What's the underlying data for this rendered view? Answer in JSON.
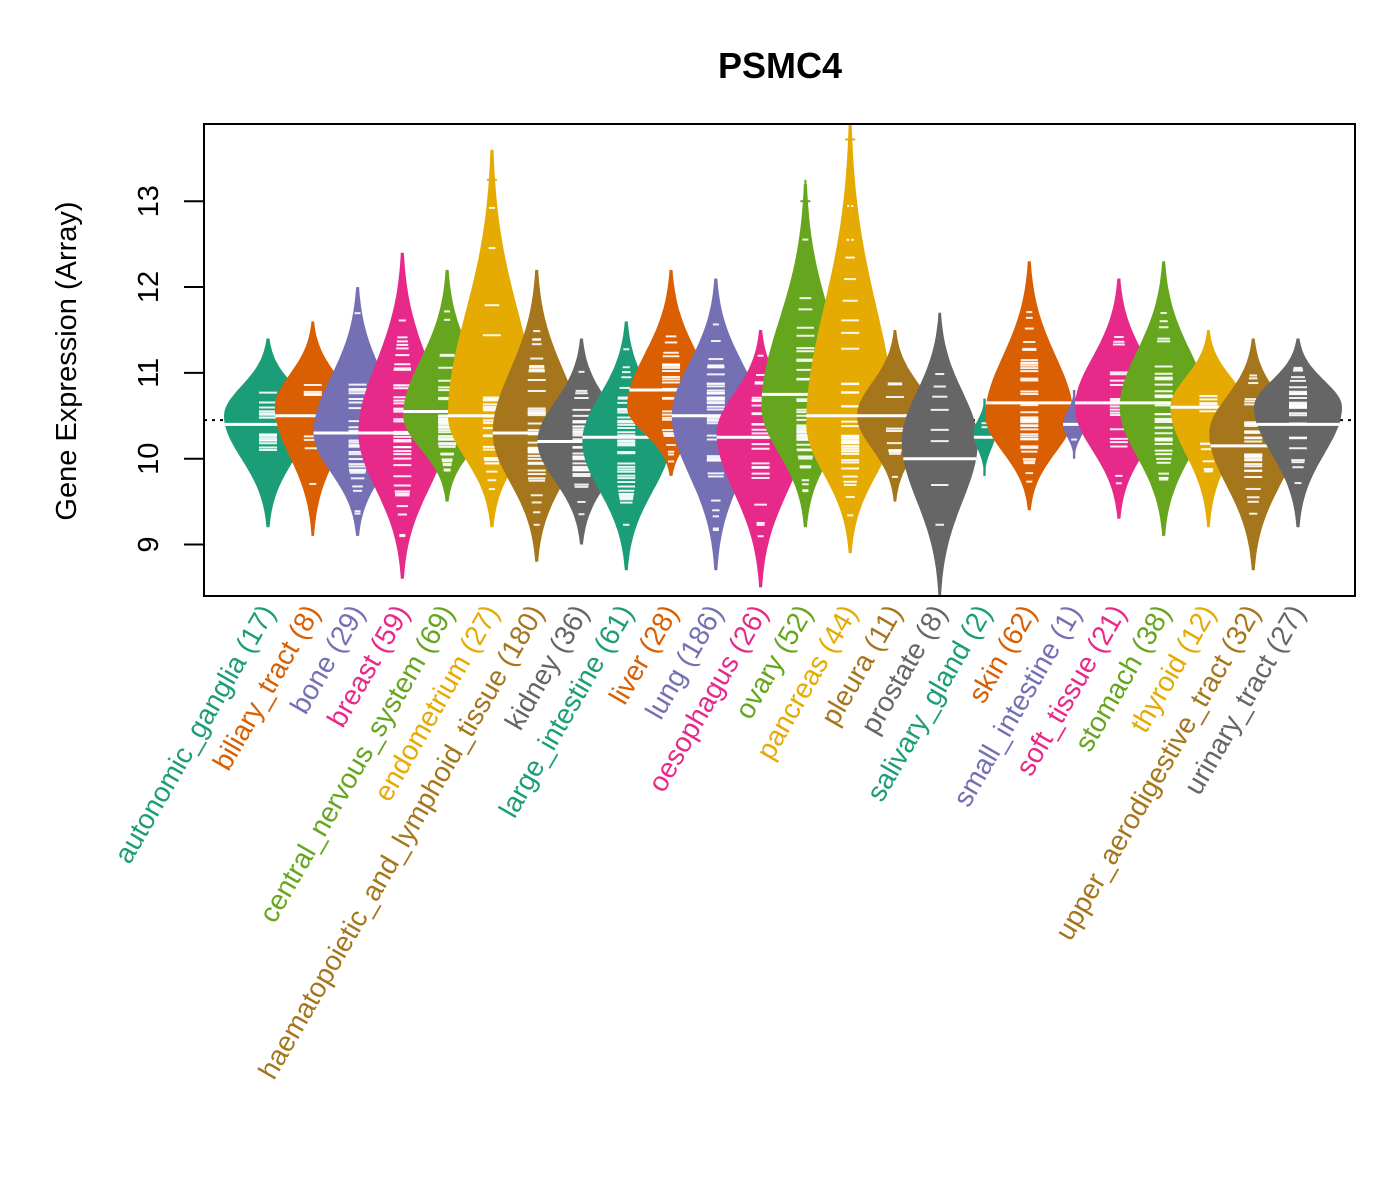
{
  "chart_data": {
    "type": "violin",
    "title": "PSMC4",
    "xlabel": "",
    "ylabel": "Gene Expression (Array)",
    "ylim": [
      8.4,
      13.9
    ],
    "yticks": [
      9,
      10,
      11,
      12,
      13
    ],
    "reference_line": 10.45,
    "grid": false,
    "legend": "none",
    "categories": [
      {
        "name": "autonomic_ganglia",
        "n": 17,
        "label": "autonomic_ganglia (17)",
        "color": "#1B9E77",
        "min": 9.2,
        "max": 11.4,
        "median": 10.4,
        "mode": 10.5
      },
      {
        "name": "biliary_tract",
        "n": 8,
        "label": "biliary_tract (8)",
        "color": "#D95F02",
        "min": 9.1,
        "max": 11.6,
        "median": 10.5,
        "mode": 10.6
      },
      {
        "name": "bone",
        "n": 29,
        "label": "bone (29)",
        "color": "#7570B3",
        "min": 9.1,
        "max": 12.0,
        "median": 10.3,
        "mode": 10.3
      },
      {
        "name": "breast",
        "n": 59,
        "label": "breast (59)",
        "color": "#E7298A",
        "min": 8.6,
        "max": 12.4,
        "median": 10.3,
        "mode": 10.3
      },
      {
        "name": "central_nervous_system",
        "n": 69,
        "label": "central_nervous_system (69)",
        "color": "#66A61E",
        "min": 9.5,
        "max": 12.2,
        "median": 10.55,
        "mode": 10.5
      },
      {
        "name": "endometrium",
        "n": 27,
        "label": "endometrium (27)",
        "color": "#E6AB02",
        "min": 9.2,
        "max": 13.6,
        "median": 10.5,
        "mode": 10.5
      },
      {
        "name": "haematopoietic_and_lymphoid_tissue",
        "n": 180,
        "label": "haematopoietic_and_lymphoid_tissue (180)",
        "color": "#A6761D",
        "min": 8.8,
        "max": 12.2,
        "median": 10.3,
        "mode": 10.3
      },
      {
        "name": "kidney",
        "n": 36,
        "label": "kidney (36)",
        "color": "#666666",
        "min": 9.0,
        "max": 11.4,
        "median": 10.2,
        "mode": 10.2
      },
      {
        "name": "large_intestine",
        "n": 61,
        "label": "large_intestine (61)",
        "color": "#1B9E77",
        "min": 8.7,
        "max": 11.6,
        "median": 10.25,
        "mode": 10.2
      },
      {
        "name": "liver",
        "n": 28,
        "label": "liver (28)",
        "color": "#D95F02",
        "min": 9.8,
        "max": 12.2,
        "median": 10.8,
        "mode": 10.6
      },
      {
        "name": "lung",
        "n": 186,
        "label": "lung (186)",
        "color": "#7570B3",
        "min": 8.7,
        "max": 12.1,
        "median": 10.5,
        "mode": 10.5
      },
      {
        "name": "oesophagus",
        "n": 26,
        "label": "oesophagus (26)",
        "color": "#E7298A",
        "min": 8.5,
        "max": 11.5,
        "median": 10.25,
        "mode": 10.3
      },
      {
        "name": "ovary",
        "n": 52,
        "label": "ovary (52)",
        "color": "#66A61E",
        "min": 9.2,
        "max": 13.2,
        "median": 10.75,
        "mode": 10.6
      },
      {
        "name": "pancreas",
        "n": 44,
        "label": "pancreas (44)",
        "color": "#E6AB02",
        "min": 8.9,
        "max": 13.9,
        "median": 10.5,
        "mode": 10.4
      },
      {
        "name": "pleura",
        "n": 11,
        "label": "pleura (11)",
        "color": "#A6761D",
        "min": 9.5,
        "max": 11.5,
        "median": 10.5,
        "mode": 10.5
      },
      {
        "name": "prostate",
        "n": 8,
        "label": "prostate (8)",
        "color": "#666666",
        "min": 8.4,
        "max": 11.7,
        "median": 10.0,
        "mode": 10.2
      },
      {
        "name": "salivary_gland",
        "n": 2,
        "label": "salivary_gland (2)",
        "color": "#1B9E77",
        "min": 9.8,
        "max": 10.7,
        "median": 10.25,
        "mode": 10.3
      },
      {
        "name": "skin",
        "n": 62,
        "label": "skin (62)",
        "color": "#D95F02",
        "min": 9.4,
        "max": 12.3,
        "median": 10.65,
        "mode": 10.5
      },
      {
        "name": "small_intestine",
        "n": 1,
        "label": "small_intestine (1)",
        "color": "#7570B3",
        "min": 10.0,
        "max": 10.8,
        "median": 10.4,
        "mode": 10.4
      },
      {
        "name": "soft_tissue",
        "n": 21,
        "label": "soft_tissue (21)",
        "color": "#E7298A",
        "min": 9.3,
        "max": 12.1,
        "median": 10.65,
        "mode": 10.6
      },
      {
        "name": "stomach",
        "n": 38,
        "label": "stomach (38)",
        "color": "#66A61E",
        "min": 9.1,
        "max": 12.3,
        "median": 10.65,
        "mode": 10.6
      },
      {
        "name": "thyroid",
        "n": 12,
        "label": "thyroid (12)",
        "color": "#E6AB02",
        "min": 9.2,
        "max": 11.5,
        "median": 10.6,
        "mode": 10.6
      },
      {
        "name": "upper_aerodigestive_tract",
        "n": 32,
        "label": "upper_aerodigestive_tract (32)",
        "color": "#A6761D",
        "min": 8.7,
        "max": 11.4,
        "median": 10.15,
        "mode": 10.3
      },
      {
        "name": "urinary_tract",
        "n": 27,
        "label": "urinary_tract (27)",
        "color": "#666666",
        "min": 9.2,
        "max": 11.4,
        "median": 10.4,
        "mode": 10.6
      }
    ]
  }
}
